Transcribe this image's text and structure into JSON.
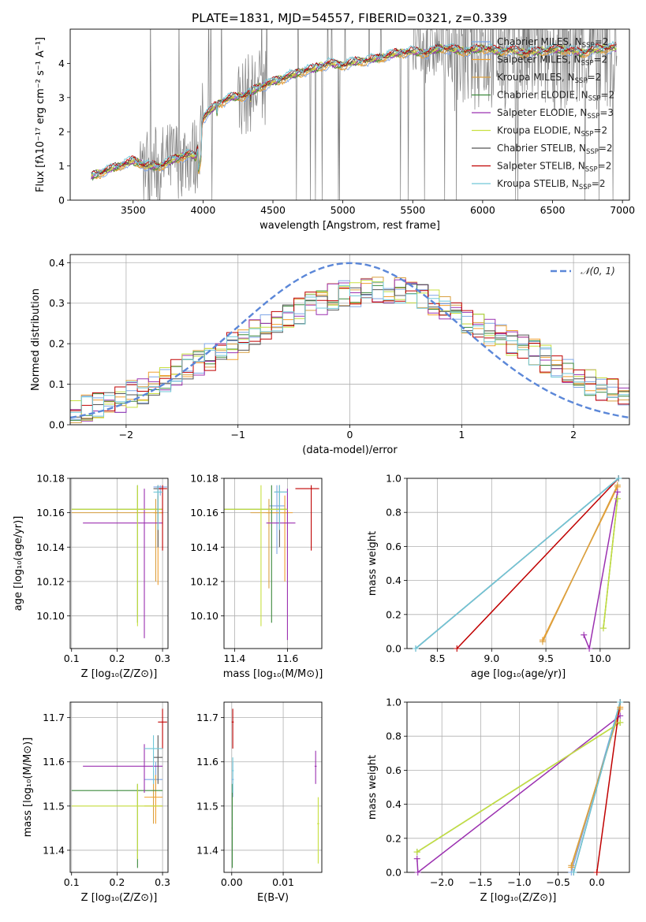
{
  "colors": {
    "Chabrier MILES": "#7fa6e6",
    "Salpeter MILES": "#f0a030",
    "Kroupa MILES": "#d9a040",
    "Chabrier ELODIE": "#3d8a3d",
    "Salpeter ELODIE": "#9b30b0",
    "Kroupa ELODIE": "#c8e040",
    "Chabrier STELIB": "#555555",
    "Salpeter STELIB": "#c00000",
    "Kroupa STELIB": "#70c8d8",
    "noisy": "#808080",
    "normal": "#5b87d8"
  },
  "chart_data": [
    {
      "id": "spectrum",
      "type": "line",
      "title": "PLATE=1831, MJD=54557, FIBERID=0321, z=0.339",
      "xlabel": "wavelength [Angstrom, rest frame]",
      "ylabel": "Flux [fλ10⁻¹⁷ erg cm⁻² s⁻¹ A⁻¹]",
      "xlim": [
        3050,
        7050
      ],
      "ylim": [
        0,
        5
      ],
      "xticks": [
        3500,
        4000,
        4500,
        5000,
        5500,
        6000,
        6500,
        7000
      ],
      "yticks": [
        0,
        1,
        2,
        3,
        4
      ],
      "legend": [
        {
          "label": "Chabrier MILES, N_SSP=2",
          "name": "Chabrier MILES",
          "text": "Chabrier MILES, N",
          "sub": "SSP",
          "post": "=2"
        },
        {
          "label": "Salpeter MILES, N_SSP=2",
          "name": "Salpeter MILES",
          "text": "Salpeter MILES, N",
          "sub": "SSP",
          "post": "=2"
        },
        {
          "label": "Kroupa MILES, N_SSP=2",
          "name": "Kroupa MILES",
          "text": "Kroupa MILES, N",
          "sub": "SSP",
          "post": "=2"
        },
        {
          "label": "Chabrier ELODIE, N_SSP=2",
          "name": "Chabrier ELODIE",
          "text": "Chabrier ELODIE, N",
          "sub": "SSP",
          "post": "=2"
        },
        {
          "label": "Salpeter ELODIE, N_SSP=3",
          "name": "Salpeter ELODIE",
          "text": "Salpeter ELODIE, N",
          "sub": "SSP",
          "post": "=3"
        },
        {
          "label": "Kroupa ELODIE, N_SSP=2",
          "name": "Kroupa ELODIE",
          "text": "Kroupa ELODIE, N",
          "sub": "SSP",
          "post": "=2"
        },
        {
          "label": "Chabrier STELIB, N_SSP=2",
          "name": "Chabrier STELIB",
          "text": "Chabrier STELIB, N",
          "sub": "SSP",
          "post": "=2"
        },
        {
          "label": "Salpeter STELIB, N_SSP=2",
          "name": "Salpeter STELIB",
          "text": "Salpeter STELIB, N",
          "sub": "SSP",
          "post": "=2"
        },
        {
          "label": "Kroupa STELIB, N_SSP=2",
          "name": "Kroupa STELIB",
          "text": "Kroupa STELIB, N",
          "sub": "SSP",
          "post": "=2"
        }
      ],
      "model_anchor": {
        "x": [
          3200,
          3300,
          3400,
          3500,
          3600,
          3700,
          3800,
          3900,
          3950,
          4000,
          4100,
          4200,
          4300,
          4400,
          4500,
          4600,
          4700,
          4800,
          4900,
          5000,
          5100,
          5200,
          5300,
          5400,
          5500,
          5600,
          5700,
          5800,
          5900,
          6000,
          6100,
          6200,
          6300,
          6400,
          6500,
          6600,
          6700,
          6800,
          6900
        ],
        "y": [
          0.7,
          0.85,
          1.0,
          1.15,
          1.0,
          1.0,
          1.2,
          1.35,
          1.25,
          2.4,
          2.8,
          3.0,
          3.05,
          3.3,
          3.45,
          3.6,
          3.75,
          3.85,
          4.0,
          3.95,
          4.05,
          4.1,
          4.2,
          4.3,
          4.35,
          4.3,
          4.45,
          4.4,
          4.35,
          4.45,
          4.35,
          4.4,
          4.3,
          4.35,
          4.4,
          4.4,
          4.3,
          4.4,
          4.45
        ]
      }
    },
    {
      "id": "residuals",
      "type": "line",
      "xlabel": "(data-model)/error",
      "ylabel": "Normed distribution",
      "xlim": [
        -2.5,
        2.5
      ],
      "ylim": [
        0,
        0.42
      ],
      "xticks": [
        -2,
        -1,
        0,
        1,
        2
      ],
      "yticks": [
        0.0,
        0.1,
        0.2,
        0.3,
        0.4
      ],
      "legend": "𝒩(0, 1)",
      "hist_anchor": {
        "x": [
          -2.5,
          -2.2,
          -1.9,
          -1.6,
          -1.3,
          -1.0,
          -0.7,
          -0.4,
          -0.1,
          0.2,
          0.5,
          0.8,
          1.1,
          1.4,
          1.7,
          2.0,
          2.3,
          2.5
        ],
        "y": [
          0.03,
          0.05,
          0.08,
          0.12,
          0.16,
          0.2,
          0.25,
          0.29,
          0.32,
          0.33,
          0.33,
          0.3,
          0.25,
          0.21,
          0.17,
          0.12,
          0.09,
          0.08
        ]
      }
    },
    {
      "id": "age-vs-Z",
      "type": "scatter",
      "xlabel": "Z [log₁₀(Z/Z⊙)]",
      "ylabel": "age  [log₁₀(age/yr)]",
      "xlim": [
        0.097,
        0.312
      ],
      "ylim": [
        10.081,
        10.18
      ],
      "xticks": [
        0.1,
        0.2,
        0.3
      ],
      "yticks": [
        10.1,
        10.12,
        10.14,
        10.16,
        10.18
      ],
      "points": [
        {
          "name": "Chabrier MILES",
          "x": 0.295,
          "y": 10.175,
          "xe": [
            0.28,
            0.31
          ],
          "ye": [
            10.17,
            10.176
          ]
        },
        {
          "name": "Salpeter MILES",
          "x": 0.29,
          "y": 10.16,
          "xe": [
            0.28,
            0.3
          ],
          "ye": [
            10.118,
            10.17
          ]
        },
        {
          "name": "Kroupa MILES",
          "x": 0.285,
          "y": 10.16,
          "xe": [
            0.1,
            0.3
          ],
          "ye": [
            10.12,
            10.168
          ]
        },
        {
          "name": "Chabrier ELODIE",
          "x": 0.245,
          "y": 10.162,
          "xe": [
            0.1,
            0.3
          ],
          "ye": [
            10.096,
            10.176
          ]
        },
        {
          "name": "Salpeter ELODIE",
          "x": 0.26,
          "y": 10.154,
          "xe": [
            0.125,
            0.3
          ],
          "ye": [
            10.087,
            10.174
          ]
        },
        {
          "name": "Kroupa ELODIE",
          "x": 0.245,
          "y": 10.162,
          "xe": [
            0.1,
            0.3
          ],
          "ye": [
            10.094,
            10.176
          ]
        },
        {
          "name": "Chabrier STELIB",
          "x": 0.29,
          "y": 10.174,
          "xe": [
            0.28,
            0.3
          ],
          "ye": [
            10.14,
            10.176
          ]
        },
        {
          "name": "Salpeter STELIB",
          "x": 0.3,
          "y": 10.174,
          "xe": [
            0.29,
            0.31
          ],
          "ye": [
            10.138,
            10.176
          ]
        },
        {
          "name": "Kroupa STELIB",
          "x": 0.29,
          "y": 10.172,
          "xe": [
            0.28,
            0.3
          ],
          "ye": [
            10.15,
            10.176
          ]
        }
      ]
    },
    {
      "id": "age-vs-mass",
      "type": "scatter",
      "xlabel": "mass [log₁₀(M/M⊙)]",
      "xlim": [
        11.36,
        11.73
      ],
      "ylim": [
        10.081,
        10.18
      ],
      "xticks": [
        11.4,
        11.6
      ],
      "yticks": [
        10.1,
        10.12,
        10.14,
        10.16,
        10.18
      ],
      "points": [
        {
          "name": "Chabrier MILES",
          "x": 11.56,
          "y": 10.164,
          "xe": [
            11.53,
            11.59
          ],
          "ye": [
            10.136,
            10.176
          ]
        },
        {
          "name": "Salpeter MILES",
          "x": 11.59,
          "y": 10.16,
          "xe": [
            11.52,
            11.62
          ],
          "ye": [
            10.12,
            10.17
          ]
        },
        {
          "name": "Kroupa MILES",
          "x": 11.53,
          "y": 10.16,
          "xe": [
            11.46,
            11.6
          ],
          "ye": [
            10.116,
            10.168
          ]
        },
        {
          "name": "Chabrier ELODIE",
          "x": 11.54,
          "y": 10.162,
          "xe": [
            11.36,
            11.6
          ],
          "ye": [
            10.096,
            10.176
          ]
        },
        {
          "name": "Salpeter ELODIE",
          "x": 11.6,
          "y": 10.154,
          "xe": [
            11.52,
            11.63
          ],
          "ye": [
            10.086,
            10.174
          ]
        },
        {
          "name": "Kroupa ELODIE",
          "x": 11.5,
          "y": 10.162,
          "xe": [
            11.36,
            11.6
          ],
          "ye": [
            10.094,
            10.176
          ]
        },
        {
          "name": "Chabrier STELIB",
          "x": 11.57,
          "y": 10.172,
          "xe": [
            11.55,
            11.6
          ],
          "ye": [
            10.14,
            10.176
          ]
        },
        {
          "name": "Salpeter STELIB",
          "x": 11.69,
          "y": 10.174,
          "xe": [
            11.63,
            11.72
          ],
          "ye": [
            10.138,
            10.176
          ]
        },
        {
          "name": "Kroupa STELIB",
          "x": 11.57,
          "y": 10.172,
          "xe": [
            11.55,
            11.6
          ],
          "ye": [
            10.15,
            10.176
          ]
        }
      ]
    },
    {
      "id": "massweight-vs-age",
      "type": "line",
      "xlabel": "age  [log₁₀(age/yr)]",
      "ylabel": "mass weight",
      "xlim": [
        8.22,
        10.27
      ],
      "ylim": [
        0,
        1
      ],
      "xticks": [
        8.5,
        9.0,
        9.5,
        10.0
      ],
      "yticks": [
        0.0,
        0.2,
        0.4,
        0.6,
        0.8,
        1.0
      ],
      "series": [
        {
          "name": "Chabrier MILES",
          "x": [
            8.3,
            10.17
          ],
          "y": [
            0.0,
            1.0
          ]
        },
        {
          "name": "Salpeter MILES",
          "x": [
            9.47,
            10.16
          ],
          "y": [
            0.05,
            0.95
          ]
        },
        {
          "name": "Kroupa MILES",
          "x": [
            9.47,
            10.16
          ],
          "y": [
            0.04,
            0.96
          ]
        },
        {
          "name": "Chabrier ELODIE",
          "x": [
            10.03,
            10.16
          ],
          "y": [
            0.12,
            0.88
          ]
        },
        {
          "name": "Salpeter ELODIE",
          "x": [
            9.85,
            9.9,
            10.16
          ],
          "y": [
            0.08,
            0.0,
            0.92
          ]
        },
        {
          "name": "Kroupa ELODIE",
          "x": [
            10.03,
            10.16
          ],
          "y": [
            0.12,
            0.88
          ]
        },
        {
          "name": "Chabrier STELIB",
          "x": [
            8.3,
            10.17
          ],
          "y": [
            0.0,
            1.0
          ]
        },
        {
          "name": "Salpeter STELIB",
          "x": [
            8.68,
            10.17
          ],
          "y": [
            0.0,
            1.0
          ]
        },
        {
          "name": "Kroupa STELIB",
          "x": [
            8.3,
            10.17
          ],
          "y": [
            0.0,
            1.0
          ]
        }
      ]
    },
    {
      "id": "mass-vs-Z",
      "type": "scatter",
      "xlabel": "Z [log₁₀(Z/Z⊙)]",
      "ylabel": "mass [log₁₀(M/M⊙)]",
      "xlim": [
        0.097,
        0.312
      ],
      "ylim": [
        11.35,
        11.735
      ],
      "xticks": [
        0.1,
        0.2,
        0.3
      ],
      "yticks": [
        11.4,
        11.5,
        11.6,
        11.7
      ],
      "points": [
        {
          "name": "Chabrier MILES",
          "x": 0.285,
          "y": 11.56,
          "xe": [
            0.26,
            0.3
          ],
          "ye": [
            11.52,
            11.6
          ]
        },
        {
          "name": "Salpeter MILES",
          "x": 0.285,
          "y": 11.52,
          "xe": [
            0.26,
            0.3
          ],
          "ye": [
            11.46,
            11.57
          ]
        },
        {
          "name": "Kroupa MILES",
          "x": 0.28,
          "y": 11.5,
          "xe": [
            0.26,
            0.3
          ],
          "ye": [
            11.46,
            11.58
          ]
        },
        {
          "name": "Chabrier ELODIE",
          "x": 0.245,
          "y": 11.535,
          "xe": [
            0.1,
            0.3
          ],
          "ye": [
            11.36,
            11.55
          ]
        },
        {
          "name": "Salpeter ELODIE",
          "x": 0.26,
          "y": 11.59,
          "xe": [
            0.125,
            0.3
          ],
          "ye": [
            11.53,
            11.64
          ]
        },
        {
          "name": "Kroupa ELODIE",
          "x": 0.245,
          "y": 11.5,
          "xe": [
            0.1,
            0.3
          ],
          "ye": [
            11.38,
            11.55
          ]
        },
        {
          "name": "Chabrier STELIB",
          "x": 0.29,
          "y": 11.61,
          "xe": [
            0.28,
            0.3
          ],
          "ye": [
            11.55,
            11.66
          ]
        },
        {
          "name": "Salpeter STELIB",
          "x": 0.3,
          "y": 11.69,
          "xe": [
            0.29,
            0.31
          ],
          "ye": [
            11.63,
            11.72
          ]
        },
        {
          "name": "Kroupa STELIB",
          "x": 0.28,
          "y": 11.63,
          "xe": [
            0.26,
            0.3
          ],
          "ye": [
            11.55,
            11.66
          ]
        }
      ]
    },
    {
      "id": "mass-vs-EBV",
      "type": "scatter",
      "xlabel": "E(B-V)",
      "xlim": [
        -0.0015,
        0.0175
      ],
      "ylim": [
        11.35,
        11.735
      ],
      "xticks": [
        0.0,
        0.01
      ],
      "yticks": [
        11.4,
        11.5,
        11.6,
        11.7
      ],
      "points": [
        {
          "name": "Chabrier MILES",
          "x": 0.0002,
          "y": 11.56,
          "xe": [
            0.0,
            0.0004
          ],
          "ye": [
            11.52,
            11.6
          ]
        },
        {
          "name": "Kroupa ELODIE",
          "x": 0.0168,
          "y": 11.46,
          "xe": [
            0.0166,
            0.017
          ],
          "ye": [
            11.37,
            11.52
          ]
        },
        {
          "name": "Salpeter ELODIE",
          "x": 0.0163,
          "y": 11.59,
          "xe": [
            0.0161,
            0.0165
          ],
          "ye": [
            11.55,
            11.625
          ]
        },
        {
          "name": "Chabrier ELODIE",
          "x": 0.0001,
          "y": 11.45,
          "xe": [
            0.0,
            0.0002
          ],
          "ye": [
            11.36,
            11.55
          ]
        },
        {
          "name": "Salpeter STELIB",
          "x": 0.0002,
          "y": 11.69,
          "xe": [
            0.0,
            0.0004
          ],
          "ye": [
            11.63,
            11.72
          ]
        },
        {
          "name": "Kroupa STELIB",
          "x": 0.0002,
          "y": 11.58,
          "xe": [
            0.0,
            0.0004
          ],
          "ye": [
            11.53,
            11.61
          ]
        }
      ]
    },
    {
      "id": "massweight-vs-Z",
      "type": "line",
      "xlabel": "Z [log₁₀(Z/Z⊙)]",
      "ylabel": "mass weight",
      "xlim": [
        -2.45,
        0.42
      ],
      "ylim": [
        0,
        1
      ],
      "xticks": [
        -2.0,
        -1.5,
        -1.0,
        -0.5,
        0.0
      ],
      "yticks": [
        0.0,
        0.2,
        0.4,
        0.6,
        0.8,
        1.0
      ],
      "series": [
        {
          "name": "Chabrier MILES",
          "x": [
            -0.33,
            0.3
          ],
          "y": [
            0.0,
            1.0
          ]
        },
        {
          "name": "Salpeter MILES",
          "x": [
            -0.33,
            0.3
          ],
          "y": [
            0.03,
            0.97
          ]
        },
        {
          "name": "Kroupa MILES",
          "x": [
            -0.33,
            0.3
          ],
          "y": [
            0.04,
            0.96
          ]
        },
        {
          "name": "Chabrier ELODIE",
          "x": [
            -2.32,
            0.3
          ],
          "y": [
            0.12,
            0.88
          ]
        },
        {
          "name": "Salpeter ELODIE",
          "x": [
            -2.32,
            -2.31,
            0.3
          ],
          "y": [
            0.08,
            0.0,
            0.92
          ]
        },
        {
          "name": "Kroupa ELODIE",
          "x": [
            -2.32,
            0.3
          ],
          "y": [
            0.12,
            0.88
          ]
        },
        {
          "name": "Chabrier STELIB",
          "x": [
            -0.3,
            0.3
          ],
          "y": [
            0.0,
            1.0
          ]
        },
        {
          "name": "Salpeter STELIB",
          "x": [
            0.0,
            0.3
          ],
          "y": [
            0.0,
            1.0
          ]
        },
        {
          "name": "Kroupa STELIB",
          "x": [
            -0.3,
            0.3
          ],
          "y": [
            0.0,
            1.0
          ]
        }
      ]
    }
  ]
}
